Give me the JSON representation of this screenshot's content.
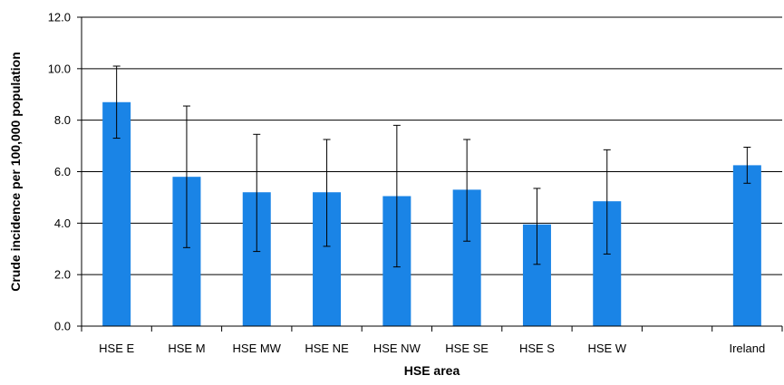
{
  "chart_data": {
    "type": "bar",
    "title": "",
    "xlabel": "HSE area",
    "ylabel": "Crude incidence per 100,000 population",
    "categories": [
      "HSE E",
      "HSE M",
      "HSE MW",
      "HSE NE",
      "HSE NW",
      "HSE SE",
      "HSE S",
      "HSE W",
      "",
      "Ireland"
    ],
    "values": [
      8.7,
      5.8,
      5.2,
      5.2,
      5.05,
      5.3,
      3.95,
      4.85,
      null,
      6.25
    ],
    "error_low": [
      7.3,
      3.05,
      2.9,
      3.1,
      2.3,
      3.3,
      2.4,
      2.8,
      null,
      5.55
    ],
    "error_high": [
      10.1,
      8.55,
      7.45,
      7.25,
      7.8,
      7.25,
      5.35,
      6.85,
      null,
      6.95
    ],
    "ylim": [
      0,
      12
    ],
    "yticks": [
      "0.0",
      "2.0",
      "4.0",
      "6.0",
      "8.0",
      "10.0",
      "12.0"
    ],
    "grid": true,
    "legend": "none",
    "colors": {
      "bar": "#1a84e6",
      "grid": "#000000",
      "error": "#000000"
    }
  }
}
